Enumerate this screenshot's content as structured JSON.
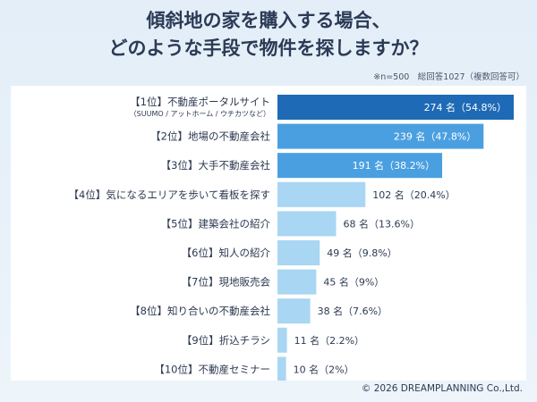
{
  "title_lines": [
    "傾斜地の家を購入する場合、",
    "どのような手段で物件を探しますか？"
  ],
  "meta": "※n=500　総回答1027（複数回答可）",
  "footer": "© 2026 DREAMPLANNING Co.,Ltd.",
  "colors": {
    "bar_top": "#1e6ab6",
    "bar_2_3": "#4a9fe0",
    "bar_rest": "#a9d6f2",
    "text_dark": "#2d3a52",
    "text_light": "#ffffff"
  },
  "chart_data": {
    "type": "bar",
    "orientation": "horizontal",
    "categories": [
      "【1位】不動産ポータルサイト",
      "【2位】地場の不動産会社",
      "【3位】大手不動産会社",
      "【4位】気になるエリアを歩いて看板を探す",
      "【5位】建築会社の紹介",
      "【6位】知人の紹介",
      "【7位】現地販売会",
      "【8位】知り合いの不動産会社",
      "【9位】折込チラシ",
      "【10位】不動産セミナー"
    ],
    "sublabels": [
      "（SUUMO / アットホーム / ウチカツなど）",
      "",
      "",
      "",
      "",
      "",
      "",
      "",
      "",
      ""
    ],
    "values": [
      274,
      239,
      191,
      102,
      68,
      49,
      45,
      38,
      11,
      10
    ],
    "value_labels": [
      "274 名（54.8%）",
      "239 名（47.8%）",
      "191 名（38.2%）",
      "102 名（20.4%）",
      "68 名（13.6%）",
      "49 名（9.8%）",
      "45 名（9%）",
      "38 名（7.6%）",
      "11 名（2.2%）",
      "10 名（2%）"
    ]
  }
}
